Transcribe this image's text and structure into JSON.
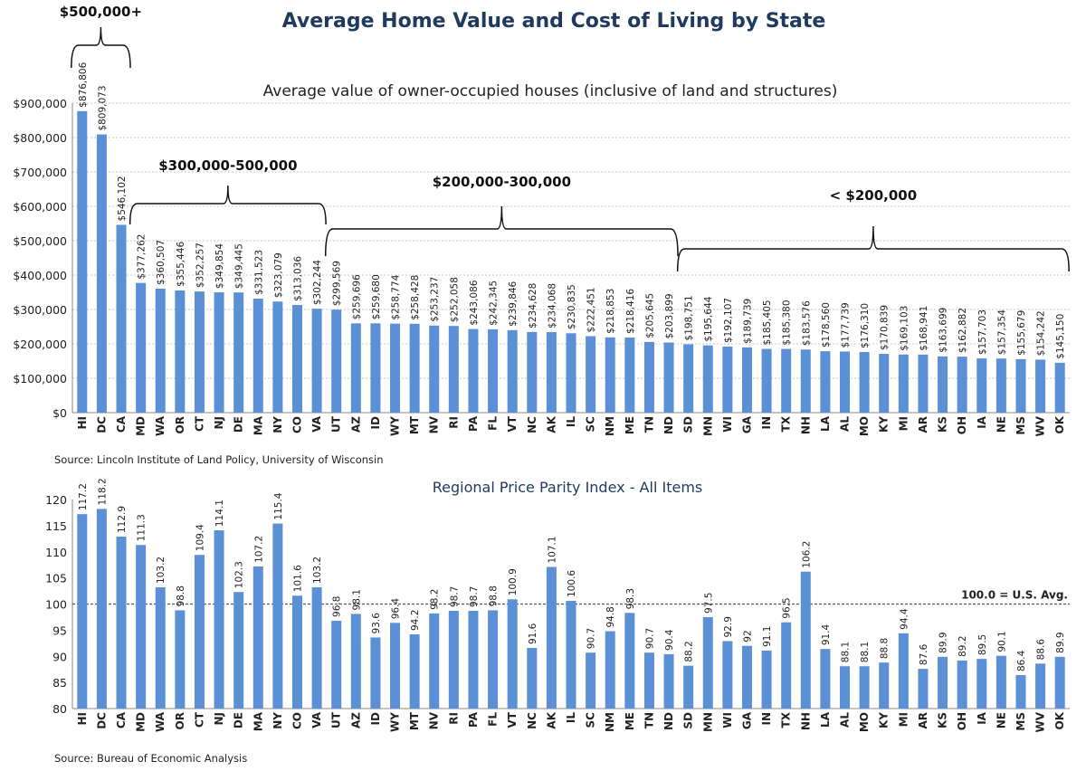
{
  "title": "Average Home Value and Cost of Living by State",
  "bar_color": "#5b8fd6",
  "chart_data": [
    {
      "type": "bar",
      "title": "Average value of owner-occupied houses (inclusive of land and structures)",
      "source": "Source: Lincoln Institute of Land Policy, University of Wisconsin",
      "categories": [
        "HI",
        "DC",
        "CA",
        "MD",
        "WA",
        "OR",
        "CT",
        "NJ",
        "DE",
        "MA",
        "NY",
        "CO",
        "VA",
        "UT",
        "AZ",
        "ID",
        "WY",
        "MT",
        "NV",
        "RI",
        "PA",
        "FL",
        "VT",
        "NC",
        "AK",
        "IL",
        "SC",
        "NM",
        "ME",
        "TN",
        "ND",
        "SD",
        "MN",
        "WI",
        "GA",
        "IN",
        "TX",
        "NH",
        "LA",
        "AL",
        "MO",
        "KY",
        "MI",
        "AR",
        "KS",
        "OH",
        "IA",
        "NE",
        "MS",
        "WV",
        "OK"
      ],
      "values": [
        876806,
        809073,
        546102,
        377262,
        360507,
        355446,
        352257,
        349854,
        349445,
        331523,
        323079,
        313036,
        302244,
        299569,
        259696,
        259680,
        258774,
        258428,
        253237,
        252058,
        243086,
        242345,
        239846,
        234628,
        234068,
        230835,
        222451,
        218853,
        218416,
        205645,
        203899,
        198751,
        195644,
        192107,
        189739,
        185405,
        185380,
        183576,
        178560,
        177739,
        176310,
        170839,
        169103,
        168941,
        163699,
        162882,
        157703,
        157354,
        155679,
        154242,
        145150
      ],
      "ylim": [
        0,
        900000
      ],
      "yticks": [
        "$0",
        "$100,000",
        "$200,000",
        "$300,000",
        "$400,000",
        "$500,000",
        "$600,000",
        "$700,000",
        "$800,000",
        "$900,000"
      ],
      "grid": true,
      "annotations": [
        {
          "text": "$500,000+",
          "from": "HI",
          "to": "CA"
        },
        {
          "text": "$300,000-500,000",
          "from": "MD",
          "to": "VA"
        },
        {
          "text": "$200,000-300,000",
          "from": "UT",
          "to": "ND"
        },
        {
          "text": "< $200,000",
          "from": "SD",
          "to": "OK"
        }
      ]
    },
    {
      "type": "bar",
      "title": "Regional Price Parity Index - All Items",
      "source": "Source: Bureau of Economic Analysis",
      "categories": [
        "HI",
        "DC",
        "CA",
        "MD",
        "WA",
        "OR",
        "CT",
        "NJ",
        "DE",
        "MA",
        "NY",
        "CO",
        "VA",
        "UT",
        "AZ",
        "ID",
        "WY",
        "MT",
        "NV",
        "RI",
        "PA",
        "FL",
        "VT",
        "NC",
        "AK",
        "IL",
        "SC",
        "NM",
        "ME",
        "TN",
        "ND",
        "SD",
        "MN",
        "WI",
        "GA",
        "IN",
        "TX",
        "NH",
        "LA",
        "AL",
        "MO",
        "KY",
        "MI",
        "AR",
        "KS",
        "OH",
        "IA",
        "NE",
        "MS",
        "WV",
        "OK"
      ],
      "values": [
        117.2,
        118.2,
        112.9,
        111.3,
        103.2,
        98.8,
        109.4,
        114.1,
        102.3,
        107.2,
        115.4,
        101.6,
        103.2,
        96.8,
        98.1,
        93.6,
        96.4,
        94.2,
        98.2,
        98.7,
        98.7,
        98.8,
        100.9,
        91.6,
        107.1,
        100.6,
        90.7,
        94.8,
        98.3,
        90.7,
        90.4,
        88.2,
        97.5,
        92.9,
        92,
        91.1,
        96.5,
        106.2,
        91.4,
        88.1,
        88.1,
        88.8,
        94.4,
        87.6,
        89.9,
        89.2,
        89.5,
        90.1,
        86.4,
        88.6,
        89.9
      ],
      "ylim": [
        80,
        120
      ],
      "yticks": [
        "80",
        "85",
        "90",
        "95",
        "100",
        "105",
        "110",
        "115",
        "120"
      ],
      "grid": false,
      "reference_line": {
        "value": 100,
        "label": "100.0 = U.S. Avg."
      }
    }
  ]
}
